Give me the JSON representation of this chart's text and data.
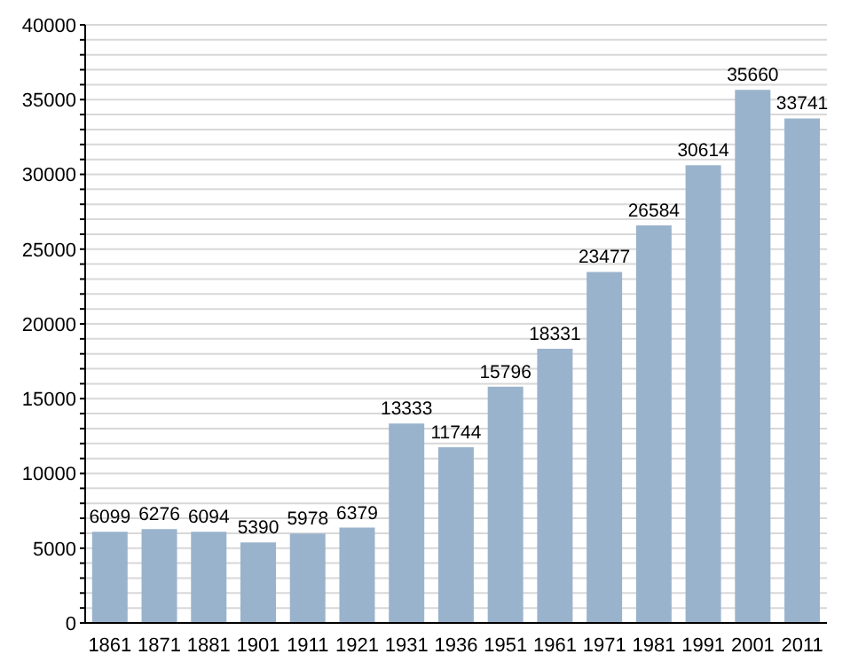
{
  "chart_data": {
    "type": "bar",
    "categories": [
      "1861",
      "1871",
      "1881",
      "1901",
      "1911",
      "1921",
      "1931",
      "1936",
      "1951",
      "1961",
      "1971",
      "1981",
      "1991",
      "2001",
      "2011"
    ],
    "values": [
      6099,
      6276,
      6094,
      5390,
      5978,
      6379,
      13333,
      11744,
      15796,
      18331,
      23477,
      26584,
      30614,
      35660,
      33741
    ],
    "color": "#9ab3cc",
    "ylim": [
      0,
      40000
    ],
    "yticks": [
      0,
      {
        "value": 1000,
        "label": null
      },
      {
        "value": 2000,
        "label": null
      },
      {
        "value": 3000,
        "label": null
      },
      {
        "value": 4000,
        "label": null
      },
      5000,
      {
        "value": 6000,
        "label": null
      },
      {
        "value": 7000,
        "label": null
      },
      {
        "value": 8000,
        "label": null
      },
      {
        "value": 9000,
        "label": null
      },
      10000,
      {
        "value": 11000,
        "label": null
      },
      {
        "value": 12000,
        "label": null
      },
      {
        "value": 13000,
        "label": null
      },
      {
        "value": 14000,
        "label": null
      },
      15000,
      {
        "value": 16000,
        "label": null
      },
      {
        "value": 17000,
        "label": null
      },
      {
        "value": 18000,
        "label": null
      },
      {
        "value": 19000,
        "label": null
      },
      20000,
      {
        "value": 21000,
        "label": null
      },
      {
        "value": 22000,
        "label": null
      },
      {
        "value": 23000,
        "label": null
      },
      {
        "value": 24000,
        "label": null
      },
      25000,
      {
        "value": 26000,
        "label": null
      },
      {
        "value": 27000,
        "label": null
      },
      {
        "value": 28000,
        "label": null
      },
      {
        "value": 29000,
        "label": null
      },
      30000,
      {
        "value": 31000,
        "label": null
      },
      {
        "value": 32000,
        "label": null
      },
      {
        "value": 33000,
        "label": null
      },
      {
        "value": 34000,
        "label": null
      },
      35000,
      {
        "value": 36000,
        "label": null
      },
      {
        "value": 37000,
        "label": null
      },
      {
        "value": 38000,
        "label": null
      },
      {
        "value": 39000,
        "label": null
      },
      40000
    ],
    "grid": "y",
    "data_labels": true
  }
}
